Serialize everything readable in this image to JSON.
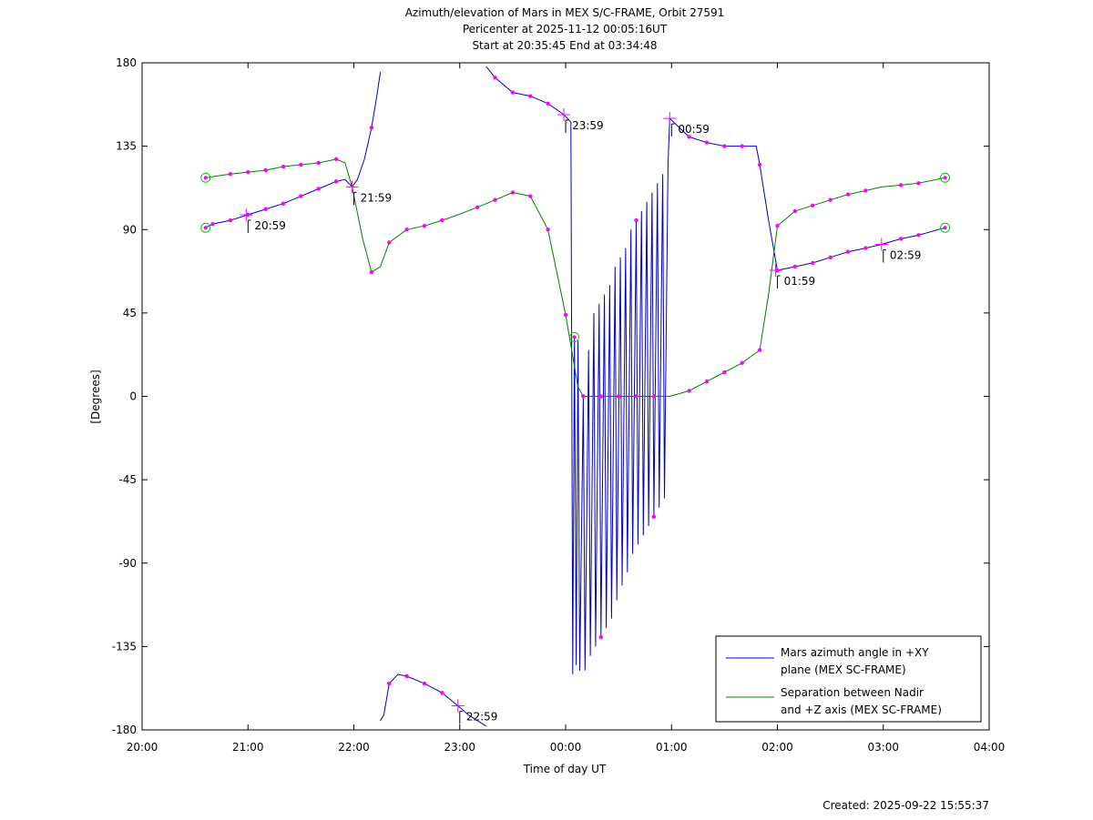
{
  "chart_data": {
    "type": "line",
    "title_lines": [
      "Azimuth/elevation of Mars in MEX S/C-FRAME,  Orbit 27591",
      "Pericenter at 2025-11-12 00:05:16UT",
      "Start at 20:35:45 End at 03:34:48"
    ],
    "xlabel": "Time of day UT",
    "ylabel": "[Degrees]",
    "xlim": [
      "20:00",
      "04:00"
    ],
    "ylim": [
      -180,
      180
    ],
    "x_ticks": [
      "20:00",
      "21:00",
      "22:00",
      "23:00",
      "00:00",
      "01:00",
      "02:00",
      "03:00",
      "04:00"
    ],
    "y_ticks": [
      180,
      135,
      90,
      45,
      0,
      -45,
      -90,
      -135,
      -180
    ],
    "legend": {
      "placement": "bottom-right",
      "entries": [
        {
          "line1": "Mars azimuth angle in +XY",
          "line2": "plane (MEX SC-FRAME)",
          "color": "#0000cc"
        },
        {
          "line1": "Separation between Nadir",
          "line2": "and +Z axis (MEX SC-FRAME)",
          "color": "#008000"
        }
      ]
    },
    "colors": {
      "azimuth": "#0000cc",
      "separation": "#008000",
      "markers": "#ff00ff",
      "endpoints": "#00cc00"
    },
    "series": [
      {
        "key": "azimuth",
        "points": [
          [
            "20:36",
            91
          ],
          [
            "20:40",
            93
          ],
          [
            "20:50",
            95
          ],
          [
            "21:00",
            98
          ],
          [
            "21:10",
            101
          ],
          [
            "21:20",
            104
          ],
          [
            "21:30",
            108
          ],
          [
            "21:40",
            112
          ],
          [
            "21:50",
            116
          ],
          [
            "21:55",
            117
          ],
          [
            "21:59",
            113
          ],
          [
            "22:02",
            117
          ],
          [
            "22:06",
            128
          ],
          [
            "22:10",
            145
          ],
          [
            "22:13",
            162
          ],
          [
            "22:15",
            175
          ],
          [
            "22:15",
            -175
          ],
          [
            "22:17",
            -172
          ],
          [
            "22:20",
            -155
          ],
          [
            "22:25",
            -150
          ],
          [
            "22:30",
            -151
          ],
          [
            "22:40",
            -155
          ],
          [
            "22:50",
            -160
          ],
          [
            "22:59",
            -167
          ],
          [
            "23:05",
            -172
          ],
          [
            "23:15",
            -178
          ],
          [
            "23:15",
            178
          ],
          [
            "23:20",
            172
          ],
          [
            "23:30",
            164
          ],
          [
            "23:40",
            162
          ],
          [
            "23:50",
            158
          ],
          [
            "23:59",
            152
          ],
          [
            "00:03",
            148
          ],
          [
            "00:04",
            -150
          ],
          [
            "00:05",
            32
          ],
          [
            "00:06",
            -145
          ],
          [
            "00:07",
            30
          ],
          [
            "00:08",
            -148
          ],
          [
            "00:10",
            0
          ],
          [
            "00:11",
            -148
          ],
          [
            "00:13",
            25
          ],
          [
            "00:14",
            -140
          ],
          [
            "00:16",
            45
          ],
          [
            "00:17",
            -135
          ],
          [
            "00:19",
            50
          ],
          [
            "00:20",
            -130
          ],
          [
            "00:22",
            55
          ],
          [
            "00:23",
            -125
          ],
          [
            "00:25",
            60
          ],
          [
            "00:26",
            -120
          ],
          [
            "00:28",
            70
          ],
          [
            "00:29",
            -110
          ],
          [
            "00:31",
            75
          ],
          [
            "00:32",
            -102
          ],
          [
            "00:34",
            80
          ],
          [
            "00:35",
            -95
          ],
          [
            "00:37",
            90
          ],
          [
            "00:38",
            -85
          ],
          [
            "00:40",
            95
          ],
          [
            "00:41",
            -80
          ],
          [
            "00:43",
            100
          ],
          [
            "00:44",
            -75
          ],
          [
            "00:46",
            105
          ],
          [
            "00:47",
            -70
          ],
          [
            "00:49",
            110
          ],
          [
            "00:50",
            -65
          ],
          [
            "00:52",
            115
          ],
          [
            "00:53",
            -60
          ],
          [
            "00:55",
            120
          ],
          [
            "00:56",
            -55
          ],
          [
            "00:58",
            125
          ],
          [
            "00:59",
            150
          ],
          [
            "01:10",
            140
          ],
          [
            "01:20",
            137
          ],
          [
            "01:30",
            135
          ],
          [
            "01:40",
            135
          ],
          [
            "01:48",
            135
          ],
          [
            "01:50",
            125
          ],
          [
            "01:55",
            95
          ],
          [
            "02:00",
            68
          ],
          [
            "02:10",
            70
          ],
          [
            "02:20",
            72
          ],
          [
            "02:30",
            75
          ],
          [
            "02:40",
            78
          ],
          [
            "02:50",
            80
          ],
          [
            "02:59",
            82
          ],
          [
            "03:10",
            85
          ],
          [
            "03:20",
            87
          ],
          [
            "03:35",
            91
          ]
        ]
      },
      {
        "key": "separation",
        "points": [
          [
            "20:36",
            118
          ],
          [
            "20:50",
            120
          ],
          [
            "21:00",
            121
          ],
          [
            "21:10",
            122
          ],
          [
            "21:20",
            124
          ],
          [
            "21:30",
            125
          ],
          [
            "21:40",
            126
          ],
          [
            "21:50",
            128
          ],
          [
            "21:55",
            126
          ],
          [
            "21:59",
            113
          ],
          [
            "22:05",
            85
          ],
          [
            "22:10",
            67
          ],
          [
            "22:15",
            70
          ],
          [
            "22:20",
            83
          ],
          [
            "22:30",
            90
          ],
          [
            "22:40",
            92
          ],
          [
            "22:50",
            95
          ],
          [
            "22:59",
            98
          ],
          [
            "23:10",
            102
          ],
          [
            "23:20",
            106
          ],
          [
            "23:30",
            110
          ],
          [
            "23:40",
            108
          ],
          [
            "23:50",
            90
          ],
          [
            "00:00",
            44
          ],
          [
            "00:07",
            5
          ],
          [
            "00:10",
            0
          ],
          [
            "00:20",
            0
          ],
          [
            "00:30",
            0
          ],
          [
            "00:40",
            0
          ],
          [
            "00:50",
            0
          ],
          [
            "00:59",
            0
          ],
          [
            "01:10",
            3
          ],
          [
            "01:20",
            8
          ],
          [
            "01:30",
            13
          ],
          [
            "01:40",
            18
          ],
          [
            "01:50",
            25
          ],
          [
            "01:55",
            55
          ],
          [
            "02:00",
            92
          ],
          [
            "02:10",
            100
          ],
          [
            "02:20",
            103
          ],
          [
            "02:30",
            106
          ],
          [
            "02:40",
            109
          ],
          [
            "02:50",
            111
          ],
          [
            "02:59",
            113
          ],
          [
            "03:10",
            114
          ],
          [
            "03:20",
            115
          ],
          [
            "03:35",
            118
          ]
        ]
      }
    ],
    "hour_labels": [
      {
        "text": "20:59",
        "t": "20:59",
        "v": 98
      },
      {
        "text": "21:59",
        "t": "21:59",
        "v": 113
      },
      {
        "text": "22:59",
        "t": "22:59",
        "v": -167
      },
      {
        "text": "23:59",
        "t": "23:59",
        "v": 152
      },
      {
        "text": "00:59",
        "t": "00:59",
        "v": 150
      },
      {
        "text": "01:59",
        "t": "01:59",
        "v": 68
      },
      {
        "text": "02:59",
        "t": "02:59",
        "v": 82
      }
    ],
    "endpoint_circles": [
      {
        "t": "20:36",
        "v": 118
      },
      {
        "t": "20:36",
        "v": 91
      },
      {
        "t": "03:35",
        "v": 118
      },
      {
        "t": "03:35",
        "v": 91
      },
      {
        "t": "00:05",
        "v": 32
      }
    ],
    "created": "Created: 2025-09-22 15:55:37"
  }
}
